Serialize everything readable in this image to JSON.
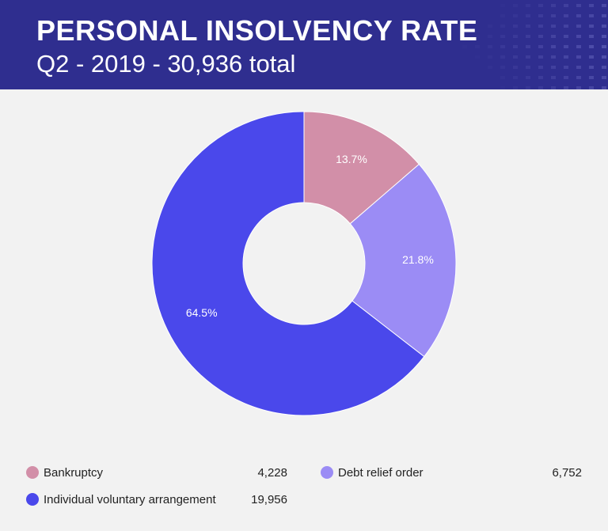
{
  "header": {
    "title": "PERSONAL INSOLVENCY RATE",
    "subtitle": "Q2 - 2019 - 30,936 total"
  },
  "colors": {
    "header_bg": "#2f2e8f",
    "background": "#f2f2f2"
  },
  "chart_data": {
    "type": "pie",
    "donut": true,
    "slices": [
      {
        "label": "Bankruptcy",
        "value": 4228,
        "value_text": "4,228",
        "percent_text": "13.7%",
        "color": "#d28fa8"
      },
      {
        "label": "Debt relief order",
        "value": 6752,
        "value_text": "6,752",
        "percent_text": "21.8%",
        "color": "#9b8cf5"
      },
      {
        "label": "Individual voluntary arrangement",
        "value": 19956,
        "value_text": "19,956",
        "percent_text": "64.5%",
        "color": "#4a48eb"
      }
    ],
    "legend_position": "bottom"
  }
}
